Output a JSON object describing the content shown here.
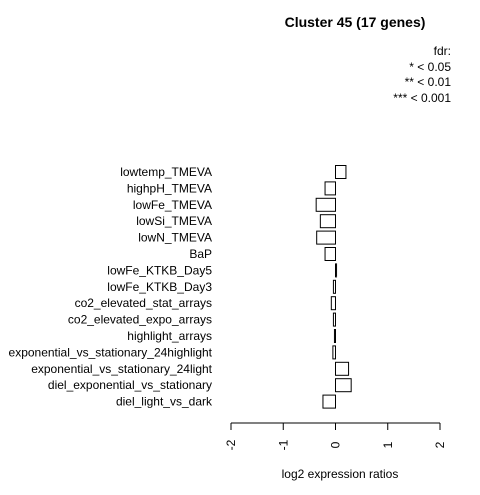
{
  "chart_data": {
    "type": "bar",
    "orientation": "horizontal",
    "title": "Cluster 45 (17 genes)",
    "legend": {
      "title": "fdr:",
      "entries": [
        "* < 0.05",
        "** < 0.01",
        "*** < 0.001"
      ],
      "position": "top-right"
    },
    "categories": [
      "lowtemp_TMEVA",
      "highpH_TMEVA",
      "lowFe_TMEVA",
      "lowSi_TMEVA",
      "lowN_TMEVA",
      "BaP",
      "lowFe_KTKB_Day5",
      "lowFe_KTKB_Day3",
      "co2_elevated_stat_arrays",
      "co2_elevated_expo_arrays",
      "highlight_arrays",
      "exponential_vs_stationary_24highlight",
      "exponential_vs_stationary_24light",
      "diel_exponential_vs_stationary",
      "diel_light_vs_dark"
    ],
    "values": [
      0.2,
      -0.2,
      -0.37,
      -0.29,
      -0.36,
      -0.2,
      0.02,
      -0.04,
      -0.08,
      -0.04,
      -0.02,
      -0.05,
      0.25,
      0.3,
      -0.24
    ],
    "xlabel": "log2 expression ratios",
    "xlim": [
      -2,
      2
    ],
    "xticks": [
      "-2",
      "-1",
      "0",
      "1",
      "2"
    ],
    "grid": false
  }
}
